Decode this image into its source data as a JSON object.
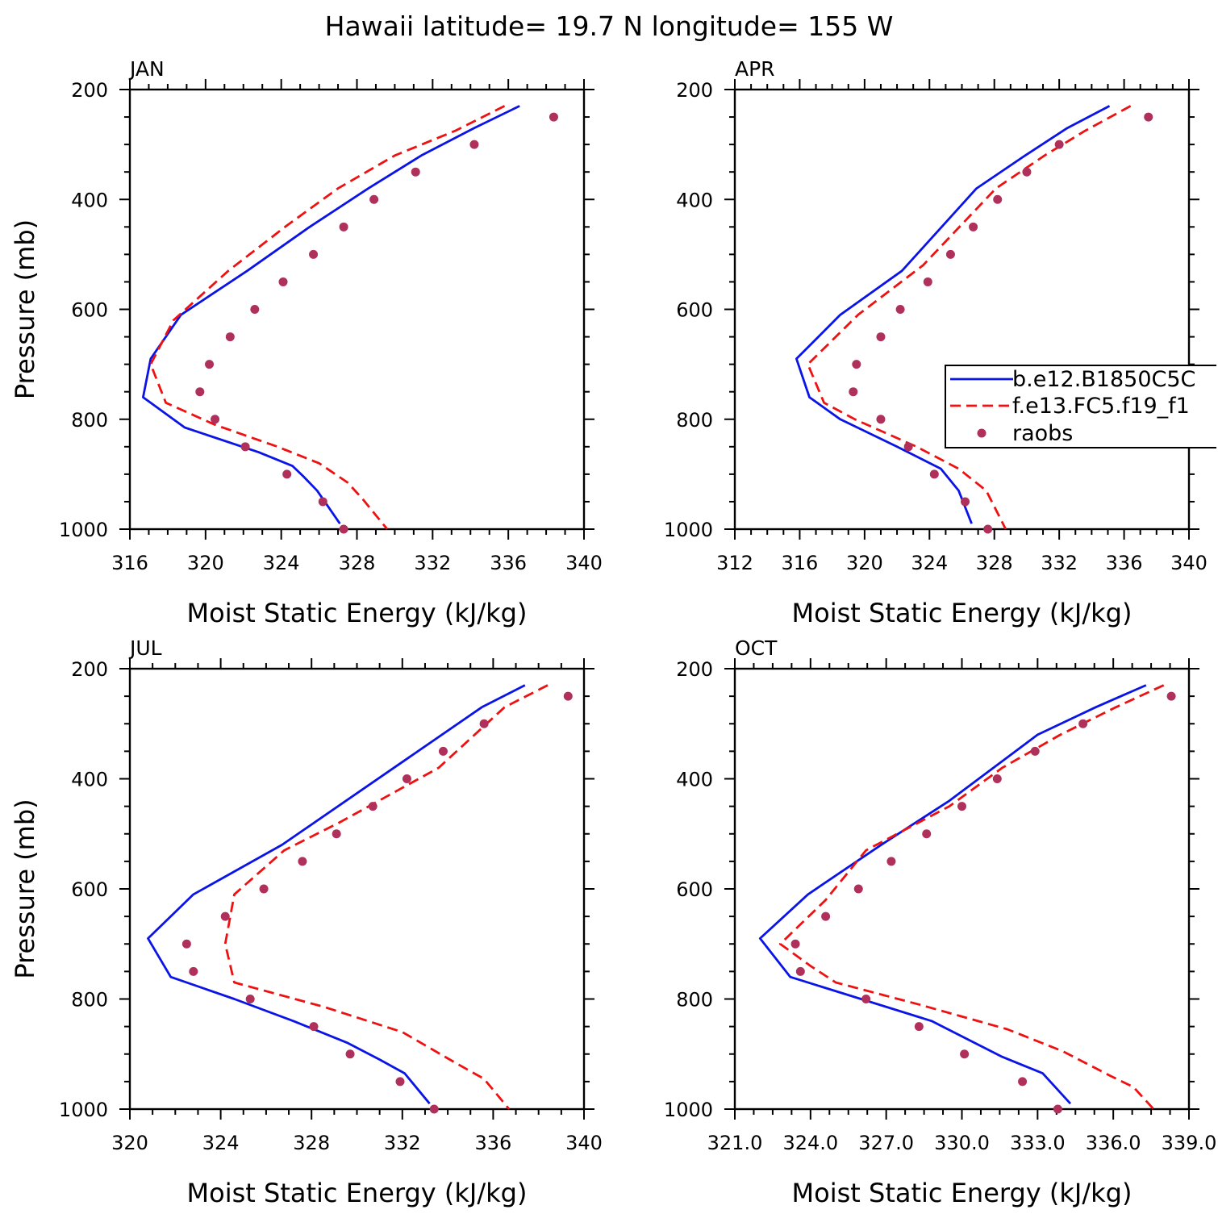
{
  "figure_title": "Hawaii  latitude= 19.7 N longitude= 155 W",
  "colors": {
    "model_b": "#0a14e6",
    "model_f": "#ee1111",
    "raobs": "#b0305c"
  },
  "legend": {
    "placement": "right-middle of APR panel (clipped at figure edge)",
    "entries": [
      {
        "label": "b.e12.B1850C5C",
        "style": "solid",
        "color": "#0a14e6"
      },
      {
        "label": "f.e13.FC5.f19_f1",
        "style": "dashed",
        "color": "#ee1111"
      },
      {
        "label": "raobs",
        "style": "dot",
        "color": "#b0305c"
      }
    ]
  },
  "chart_data": [
    {
      "type": "line",
      "panel": "JAN",
      "title": "JAN",
      "xlabel": "Moist Static Energy (kJ/kg)",
      "ylabel": "Pressure (mb)",
      "xlim": [
        316,
        340
      ],
      "ylim": [
        1000,
        200
      ],
      "xticks": [
        316,
        320,
        324,
        328,
        332,
        336,
        340
      ],
      "xtick_labels": [
        "316",
        "320",
        "324",
        "328",
        "332",
        "336",
        "340"
      ],
      "yticks": [
        200,
        400,
        600,
        800,
        1000
      ],
      "ytick_labels": [
        "200",
        "400",
        "600",
        "800",
        "1000"
      ],
      "grid": false,
      "series": [
        {
          "name": "b.e12.B1850C5C",
          "x": [
            336.6,
            334.2,
            331.4,
            328.6,
            325.5,
            322.2,
            318.7,
            317.1,
            316.7,
            318.9,
            322.8,
            324.6,
            325.2,
            325.9,
            327.1
          ],
          "y": [
            230,
            270,
            320,
            380,
            450,
            530,
            610,
            690,
            760,
            815,
            860,
            885,
            905,
            930,
            990
          ]
        },
        {
          "name": "f.e13.FC5.f19_f1",
          "x": [
            335.8,
            333.2,
            330.0,
            327.0,
            324.2,
            321.2,
            318.3,
            317.1,
            317.9,
            320.5,
            323.8,
            326.0,
            327.5,
            328.3,
            329.6
          ],
          "y": [
            230,
            275,
            320,
            380,
            450,
            530,
            620,
            700,
            770,
            810,
            850,
            880,
            915,
            945,
            1000
          ]
        },
        {
          "name": "raobs",
          "x": [
            338.4,
            334.2,
            331.1,
            328.9,
            327.3,
            325.7,
            324.1,
            322.6,
            321.3,
            320.2,
            319.7,
            320.5,
            322.1,
            324.3,
            326.2,
            327.3
          ],
          "y": [
            250,
            300,
            350,
            400,
            450,
            500,
            550,
            600,
            650,
            700,
            750,
            800,
            850,
            900,
            950,
            1000
          ]
        }
      ]
    },
    {
      "type": "line",
      "panel": "APR",
      "title": "APR",
      "xlabel": "Moist Static Energy (kJ/kg)",
      "ylabel": "",
      "xlim": [
        312,
        340
      ],
      "ylim": [
        1000,
        200
      ],
      "xticks": [
        312,
        316,
        320,
        324,
        328,
        332,
        336,
        340
      ],
      "xtick_labels": [
        "312",
        "316",
        "320",
        "324",
        "328",
        "332",
        "336",
        "340"
      ],
      "yticks": [
        200,
        400,
        600,
        800,
        1000
      ],
      "ytick_labels": [
        "200",
        "400",
        "600",
        "800",
        "1000"
      ],
      "grid": false,
      "series": [
        {
          "name": "b.e12.B1850C5C",
          "x": [
            335.1,
            332.5,
            329.9,
            326.9,
            322.3,
            318.5,
            315.8,
            316.6,
            318.5,
            322.0,
            324.7,
            325.8,
            326.6
          ],
          "y": [
            230,
            270,
            320,
            380,
            530,
            610,
            690,
            760,
            800,
            850,
            890,
            930,
            990
          ]
        },
        {
          "name": "f.e13.FC5.f19_f1",
          "x": [
            336.4,
            333.6,
            331.1,
            328.1,
            323.6,
            319.6,
            316.5,
            317.5,
            319.4,
            323.2,
            325.8,
            327.5,
            328.7
          ],
          "y": [
            230,
            275,
            320,
            380,
            520,
            610,
            700,
            770,
            800,
            850,
            890,
            930,
            1000
          ]
        },
        {
          "name": "raobs",
          "x": [
            337.5,
            332.0,
            330.0,
            328.2,
            326.7,
            325.3,
            323.9,
            322.2,
            321.0,
            319.5,
            319.3,
            321.0,
            322.7,
            324.3,
            326.2,
            327.6
          ],
          "y": [
            250,
            300,
            350,
            400,
            450,
            500,
            550,
            600,
            650,
            700,
            750,
            800,
            850,
            900,
            950,
            1000
          ]
        }
      ]
    },
    {
      "type": "line",
      "panel": "JUL",
      "title": "JUL",
      "xlabel": "Moist Static Energy (kJ/kg)",
      "ylabel": "Pressure (mb)",
      "xlim": [
        320,
        340
      ],
      "ylim": [
        1000,
        200
      ],
      "xticks": [
        320,
        324,
        328,
        332,
        336,
        340
      ],
      "xtick_labels": [
        "320",
        "324",
        "328",
        "332",
        "336",
        "340"
      ],
      "yticks": [
        200,
        400,
        600,
        800,
        1000
      ],
      "ytick_labels": [
        "200",
        "400",
        "600",
        "800",
        "1000"
      ],
      "grid": false,
      "series": [
        {
          "name": "b.e12.B1850C5C",
          "x": [
            337.4,
            335.5,
            326.7,
            322.8,
            320.8,
            321.8,
            324.6,
            327.2,
            329.6,
            331.0,
            332.1,
            333.2
          ],
          "y": [
            230,
            270,
            520,
            610,
            690,
            760,
            800,
            840,
            880,
            910,
            935,
            990
          ]
        },
        {
          "name": "f.e13.FC5.f19_f1",
          "x": [
            338.4,
            336.5,
            333.6,
            329.2,
            326.8,
            324.6,
            324.2,
            324.6,
            328.6,
            332.0,
            334.3,
            335.6,
            336.7
          ],
          "y": [
            230,
            270,
            380,
            480,
            530,
            610,
            700,
            770,
            815,
            860,
            915,
            945,
            1000
          ]
        },
        {
          "name": "raobs",
          "x": [
            339.3,
            335.6,
            333.8,
            332.2,
            330.7,
            329.1,
            327.6,
            325.9,
            324.2,
            322.5,
            322.8,
            325.3,
            328.1,
            329.7,
            331.9,
            333.4
          ],
          "y": [
            250,
            300,
            350,
            400,
            450,
            500,
            550,
            600,
            650,
            700,
            750,
            800,
            850,
            900,
            950,
            1000
          ]
        }
      ]
    },
    {
      "type": "line",
      "panel": "OCT",
      "title": "OCT",
      "xlabel": "Moist Static Energy (kJ/kg)",
      "ylabel": "",
      "xlim": [
        321,
        339
      ],
      "ylim": [
        1000,
        200
      ],
      "xticks": [
        321,
        324,
        327,
        330,
        333,
        336,
        339
      ],
      "xtick_labels": [
        "321.0",
        "324.0",
        "327.0",
        "330.0",
        "333.0",
        "336.0",
        "339.0"
      ],
      "yticks": [
        200,
        400,
        600,
        800,
        1000
      ],
      "ytick_labels": [
        "200",
        "400",
        "600",
        "800",
        "1000"
      ],
      "grid": false,
      "series": [
        {
          "name": "b.e12.B1850C5C",
          "x": [
            337.3,
            335.3,
            333.0,
            329.5,
            326.8,
            323.9,
            322.0,
            323.2,
            326.0,
            328.8,
            331.6,
            333.2,
            334.3
          ],
          "y": [
            230,
            270,
            320,
            440,
            520,
            610,
            690,
            760,
            800,
            840,
            905,
            935,
            990
          ]
        },
        {
          "name": "f.e13.FC5.f19_f1",
          "x": [
            338.0,
            336.1,
            333.9,
            331.6,
            329.5,
            326.2,
            324.6,
            322.8,
            324.0,
            325.0,
            328.3,
            331.8,
            334.0,
            335.9,
            336.8,
            337.6
          ],
          "y": [
            230,
            270,
            320,
            380,
            450,
            530,
            620,
            700,
            740,
            770,
            810,
            855,
            895,
            940,
            960,
            1000
          ]
        },
        {
          "name": "raobs",
          "x": [
            338.3,
            334.8,
            332.9,
            331.4,
            330.0,
            328.6,
            327.2,
            325.9,
            324.6,
            323.4,
            323.6,
            326.2,
            328.3,
            330.1,
            332.4,
            333.8
          ],
          "y": [
            250,
            300,
            350,
            400,
            450,
            500,
            550,
            600,
            650,
            700,
            750,
            800,
            850,
            900,
            950,
            1000
          ]
        }
      ]
    }
  ]
}
